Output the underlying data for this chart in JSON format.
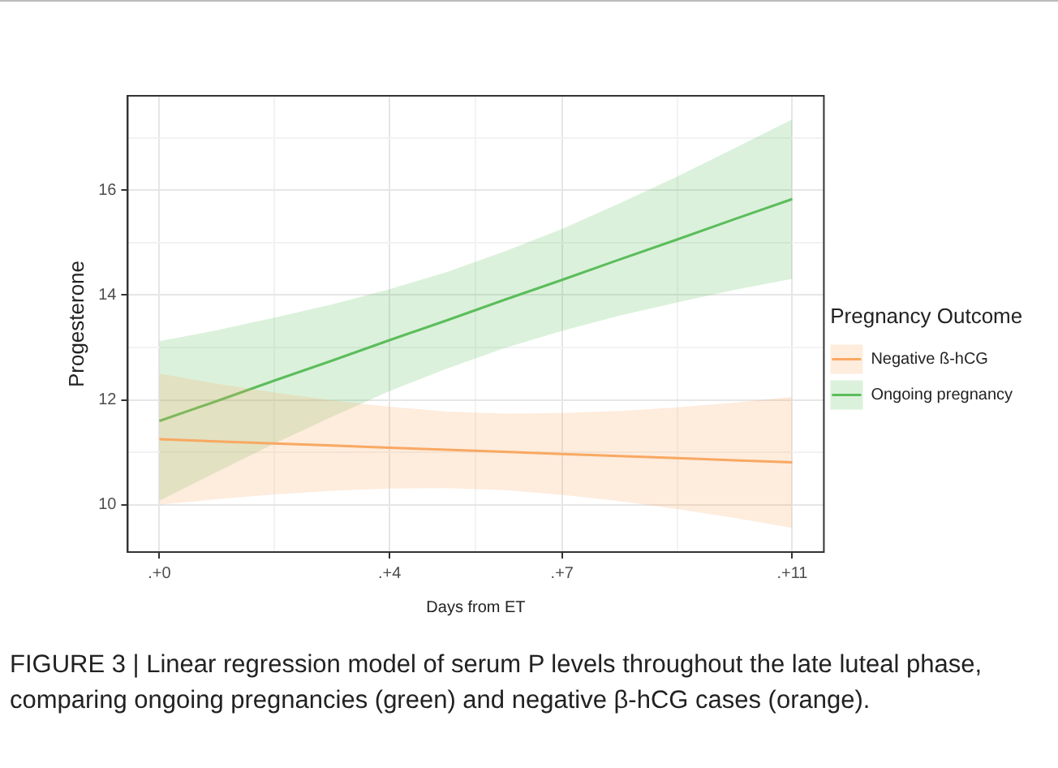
{
  "chart_data": {
    "type": "line",
    "xlabel": "Days from ET",
    "ylabel": "Progesterone",
    "legend_title": "Pregnancy Outcome",
    "legend": "right",
    "grid": true,
    "xlim": [
      -0.55,
      11.55
    ],
    "xticks": [
      {
        "value": 0,
        "label": ".+0"
      },
      {
        "value": 2,
        "label": null
      },
      {
        "value": 4,
        "label": ".+4"
      },
      {
        "value": 5.5,
        "label": null
      },
      {
        "value": 7,
        "label": ".+7"
      },
      {
        "value": 9,
        "label": null
      },
      {
        "value": 11,
        "label": ".+11"
      }
    ],
    "ylim": [
      9.1,
      17.8
    ],
    "yticks": [
      10,
      {
        "value": 11,
        "label": null
      },
      12,
      {
        "value": 13,
        "label": null
      },
      14,
      {
        "value": 15,
        "label": null
      },
      16,
      {
        "value": 17,
        "label": null
      }
    ],
    "x": [
      0,
      1,
      2,
      3,
      4,
      5,
      6,
      7,
      8,
      9,
      10,
      11
    ],
    "series": [
      {
        "name": "Negative ß-hCG",
        "color": "#f9a862",
        "values": [
          11.25,
          11.21,
          11.17,
          11.13,
          11.09,
          11.05,
          11.01,
          10.97,
          10.93,
          10.89,
          10.85,
          10.81
        ],
        "lower": [
          10.0,
          10.11,
          10.2,
          10.27,
          10.31,
          10.32,
          10.28,
          10.19,
          10.07,
          9.92,
          9.75,
          9.56
        ],
        "upper": [
          12.5,
          12.31,
          12.14,
          11.99,
          11.87,
          11.78,
          11.74,
          11.75,
          11.79,
          11.86,
          11.95,
          12.06
        ]
      },
      {
        "name": "Ongoing pregnancy",
        "color": "#5cbd5c",
        "values": [
          11.6,
          11.98,
          12.37,
          12.75,
          13.14,
          13.52,
          13.91,
          14.29,
          14.68,
          15.06,
          15.45,
          15.83
        ],
        "lower": [
          10.08,
          10.63,
          11.17,
          11.68,
          12.17,
          12.6,
          12.99,
          13.32,
          13.61,
          13.86,
          14.1,
          14.31
        ],
        "upper": [
          13.12,
          13.33,
          13.57,
          13.82,
          14.11,
          14.44,
          14.83,
          15.26,
          15.75,
          16.26,
          16.8,
          17.35
        ]
      }
    ],
    "annotations": [
      "FIGURE 3 | Linear regression model of serum P levels throughout the late luteal phase, comparing ongoing pregnancies (green) and negative β-hCG cases (orange)."
    ]
  }
}
